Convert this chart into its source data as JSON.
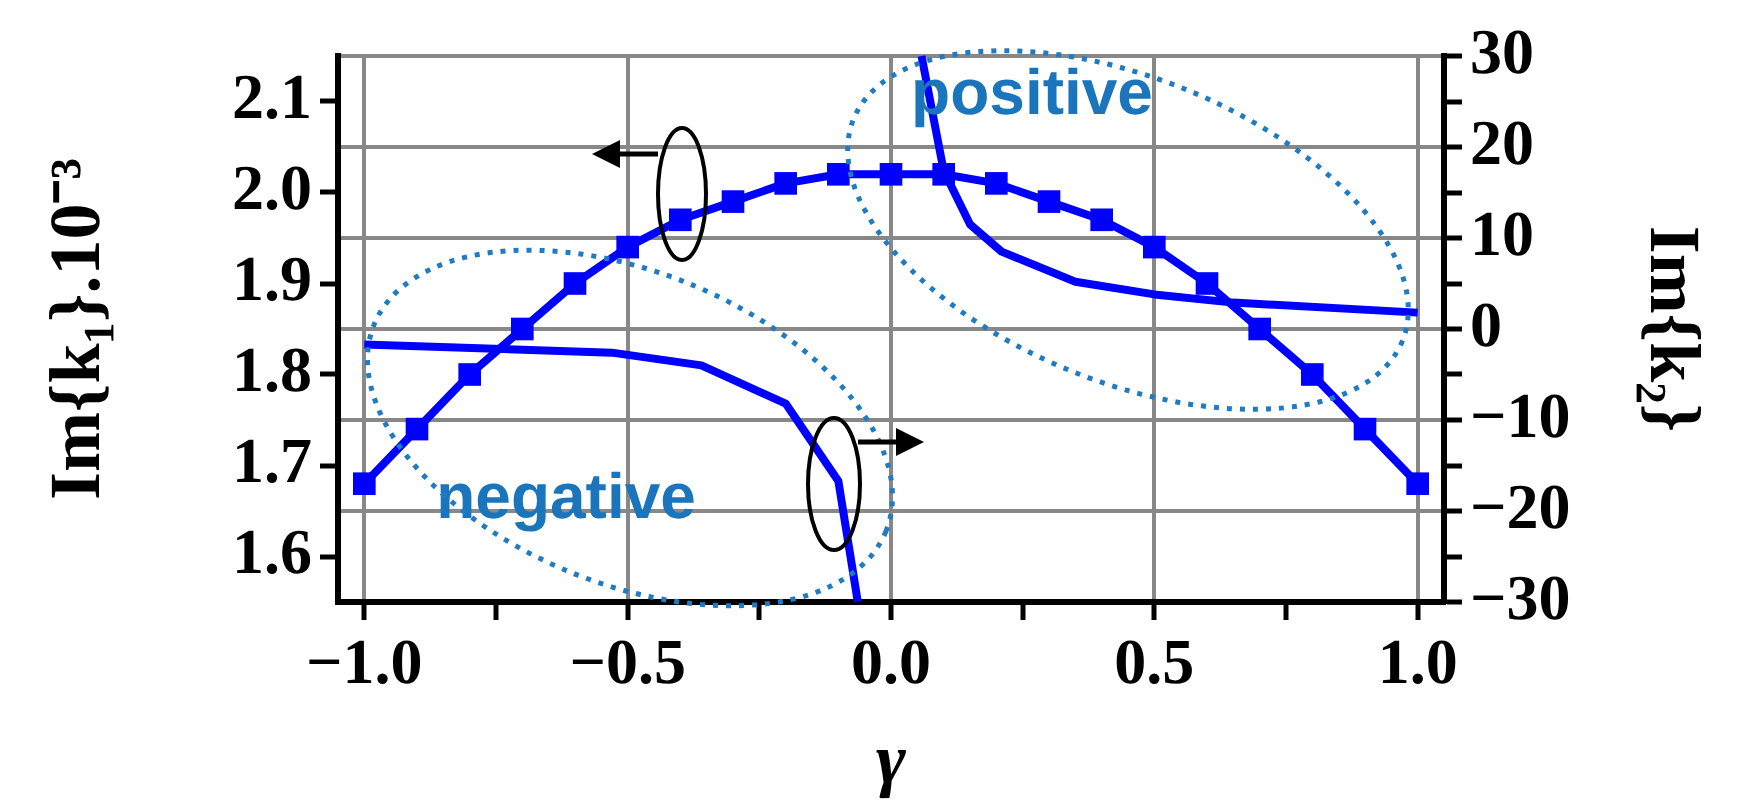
{
  "chart_data": {
    "type": "line",
    "xlabel": "γ",
    "ylabel": "Im{k₁}.10⁻³",
    "y2label": "Im{k₂}",
    "annotations": [
      "positive",
      "negative"
    ],
    "xlim": [
      -1.05,
      1.05
    ],
    "xticks": [
      {
        "value": -1,
        "label": "−1.0"
      },
      {
        "value": -0.75,
        "label": null
      },
      {
        "value": -0.5,
        "label": "−0.5"
      },
      {
        "value": -0.25,
        "label": null
      },
      {
        "value": 0,
        "label": "0.0"
      },
      {
        "value": 0.25,
        "label": null
      },
      {
        "value": 0.5,
        "label": "0.5"
      },
      {
        "value": 0.75,
        "label": null
      },
      {
        "value": 1,
        "label": "1.0"
      }
    ],
    "ylim": [
      1.55,
      2.15
    ],
    "yticks": [
      1.6,
      1.7,
      1.8,
      1.9,
      {
        "value": 2,
        "label": "2.0"
      },
      2.1
    ],
    "y2lim": [
      -30,
      30
    ],
    "y2ticks": [
      {
        "value": -30,
        "label": "−30"
      },
      {
        "value": -25,
        "label": null
      },
      {
        "value": -20,
        "label": "−20"
      },
      {
        "value": -15,
        "label": null
      },
      {
        "value": -10,
        "label": "−10"
      },
      {
        "value": -5,
        "label": null
      },
      0,
      {
        "value": 5,
        "label": null
      },
      10,
      {
        "value": 15,
        "label": null
      },
      20,
      {
        "value": 25,
        "label": null
      },
      30
    ],
    "grid": true,
    "legend": false,
    "line_style": "solid",
    "series": [
      {
        "color": "#0000ff",
        "marker": "square",
        "x": [
          -1,
          -0.9,
          -0.8,
          -0.7,
          -0.6,
          -0.5,
          -0.4,
          -0.3,
          -0.2,
          -0.1,
          0,
          0.1,
          0.2,
          0.3,
          0.4,
          0.5,
          0.6,
          0.7,
          0.8,
          0.9,
          1
        ],
        "values": [
          1.68,
          1.74,
          1.8,
          1.85,
          1.9,
          1.94,
          1.97,
          1.99,
          2.01,
          2.02,
          2.02,
          2.02,
          2.01,
          1.99,
          1.97,
          1.94,
          1.9,
          1.85,
          1.8,
          1.74,
          1.68
        ]
      },
      {
        "color": "#0000ff",
        "marker": "none",
        "axis": "y2",
        "x": [
          -1,
          -0.53,
          -0.36,
          -0.2,
          -0.1,
          -0.063,
          null,
          0.058,
          0.1,
          0.15,
          0.21,
          0.35,
          0.5,
          0.65,
          1
        ],
        "values": [
          -1.7,
          -2.6,
          -4,
          -8.2,
          -16.7,
          -30,
          null,
          30,
          17.4,
          11.5,
          8.5,
          5.2,
          3.8,
          2.9,
          1.8
        ]
      }
    ]
  }
}
